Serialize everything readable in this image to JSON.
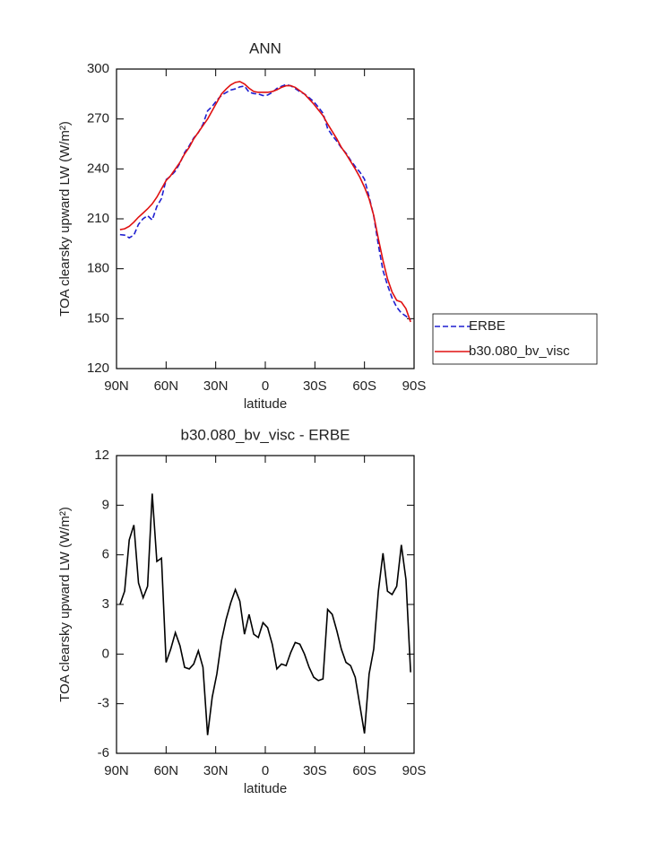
{
  "chart_data": [
    {
      "type": "line",
      "title": "ANN",
      "xlabel": "latitude",
      "ylabel": "TOA clearsky upward LW (W/m²)",
      "x": [
        87.9,
        85.1,
        82.3,
        79.5,
        76.7,
        73.9,
        71.2,
        68.4,
        65.6,
        62.8,
        60.0,
        57.2,
        54.4,
        51.6,
        48.8,
        46.0,
        43.3,
        40.5,
        37.7,
        34.9,
        32.1,
        29.3,
        26.5,
        23.7,
        20.9,
        18.1,
        15.4,
        12.6,
        9.8,
        7.0,
        4.2,
        1.4,
        -1.4,
        -4.2,
        -7.0,
        -9.8,
        -12.6,
        -15.4,
        -18.1,
        -20.9,
        -23.7,
        -26.5,
        -29.3,
        -32.1,
        -34.9,
        -37.7,
        -40.5,
        -43.3,
        -46.0,
        -48.8,
        -51.6,
        -54.4,
        -57.2,
        -60.0,
        -62.8,
        -65.6,
        -68.4,
        -71.2,
        -73.9,
        -76.7,
        -79.5,
        -82.3,
        -85.1,
        -87.9
      ],
      "series": [
        {
          "name": "ERBE",
          "color": "#1f1fd0",
          "linestyle": "dashed",
          "values": [
            200.5,
            200.2,
            198.6,
            200.2,
            206.7,
            210.1,
            211.9,
            209.3,
            217.4,
            222.2,
            233.5,
            235.7,
            238.7,
            243.5,
            249.8,
            253.9,
            258.6,
            261.8,
            266.8,
            274.9,
            277.6,
            281.2,
            284.2,
            285.9,
            287.4,
            288.1,
            289.3,
            289.8,
            286.1,
            285.3,
            285,
            284.1,
            284.4,
            285.9,
            288.4,
            289.6,
            290.7,
            289.9,
            288.3,
            286.4,
            285,
            282.8,
            280.4,
            277.1,
            273.5,
            264.3,
            260.1,
            256.6,
            252.7,
            249.5,
            245.2,
            241.4,
            238.1,
            233.8,
            223.2,
            211.7,
            194.2,
            178.9,
            170.2,
            162.4,
            156.9,
            153.4,
            151.5,
            149.1
          ]
        },
        {
          "name": "b30.080_bv_visc",
          "color": "#e01010",
          "linestyle": "solid",
          "values": [
            203.5,
            204,
            205.5,
            208,
            211,
            213.5,
            216,
            219,
            223,
            228,
            233,
            236,
            240,
            244,
            249,
            253,
            258,
            262,
            266,
            270,
            275,
            280,
            285,
            288,
            290.5,
            292,
            292.5,
            291,
            288.5,
            286.5,
            286,
            286,
            286,
            286.5,
            287.5,
            289,
            290,
            290,
            289,
            287,
            285,
            282,
            279,
            275.5,
            272,
            267,
            262.5,
            258,
            253,
            249,
            244.5,
            240,
            235,
            229,
            222,
            212,
            198,
            185,
            174,
            166,
            161,
            160,
            156,
            148
          ]
        }
      ],
      "xlim": [
        90,
        -90
      ],
      "xticks": [
        {
          "value": 90,
          "label": "90N"
        },
        {
          "value": 60,
          "label": "60N"
        },
        {
          "value": 30,
          "label": "30N"
        },
        0,
        {
          "value": -30,
          "label": "30S"
        },
        {
          "value": -60,
          "label": "60S"
        },
        {
          "value": -90,
          "label": "90S"
        }
      ],
      "ylim": [
        120,
        300
      ],
      "yticks": [
        120,
        150,
        180,
        210,
        240,
        270,
        300
      ],
      "legend": "right"
    },
    {
      "type": "line",
      "title": "b30.080_bv_visc - ERBE",
      "xlabel": "latitude",
      "ylabel": "TOA clearsky upward LW (W/m²)",
      "x": [
        87.9,
        85.1,
        82.3,
        79.5,
        76.7,
        73.9,
        71.2,
        68.4,
        65.6,
        62.8,
        60.0,
        57.2,
        54.4,
        51.6,
        48.8,
        46.0,
        43.3,
        40.5,
        37.7,
        34.9,
        32.1,
        29.3,
        26.5,
        23.7,
        20.9,
        18.1,
        15.4,
        12.6,
        9.8,
        7.0,
        4.2,
        1.4,
        -1.4,
        -4.2,
        -7.0,
        -9.8,
        -12.6,
        -15.4,
        -18.1,
        -20.9,
        -23.7,
        -26.5,
        -29.3,
        -32.1,
        -34.9,
        -37.7,
        -40.5,
        -43.3,
        -46.0,
        -48.8,
        -51.6,
        -54.4,
        -57.2,
        -60.0,
        -62.8,
        -65.6,
        -68.4,
        -71.2,
        -73.9,
        -76.7,
        -79.5,
        -82.3,
        -85.1,
        -87.9
      ],
      "series": [
        {
          "color": "#000000",
          "linestyle": "solid",
          "values": [
            3.0,
            3.8,
            6.9,
            7.8,
            4.3,
            3.4,
            4.1,
            9.7,
            5.6,
            5.8,
            -0.5,
            0.3,
            1.3,
            0.5,
            -0.8,
            -0.9,
            -0.6,
            0.2,
            -0.8,
            -4.9,
            -2.6,
            -1.2,
            0.8,
            2.1,
            3.1,
            3.9,
            3.2,
            1.2,
            2.4,
            1.2,
            1.0,
            1.9,
            1.6,
            0.6,
            -0.9,
            -0.6,
            -0.7,
            0.1,
            0.7,
            0.6,
            0.0,
            -0.8,
            -1.4,
            -1.6,
            -1.5,
            2.7,
            2.4,
            1.4,
            0.3,
            -0.5,
            -0.7,
            -1.4,
            -3.1,
            -4.8,
            -1.2,
            0.3,
            3.8,
            6.1,
            3.8,
            3.6,
            4.1,
            6.6,
            4.5,
            -1.1
          ]
        }
      ],
      "xlim": [
        90,
        -90
      ],
      "xticks": [
        {
          "value": 90,
          "label": "90N"
        },
        {
          "value": 60,
          "label": "60N"
        },
        {
          "value": 30,
          "label": "30N"
        },
        0,
        {
          "value": -30,
          "label": "30S"
        },
        {
          "value": -60,
          "label": "60S"
        },
        {
          "value": -90,
          "label": "90S"
        }
      ],
      "ylim": [
        -6,
        12
      ],
      "yticks": [
        -6,
        -3,
        0,
        3,
        6,
        9,
        12
      ]
    }
  ]
}
